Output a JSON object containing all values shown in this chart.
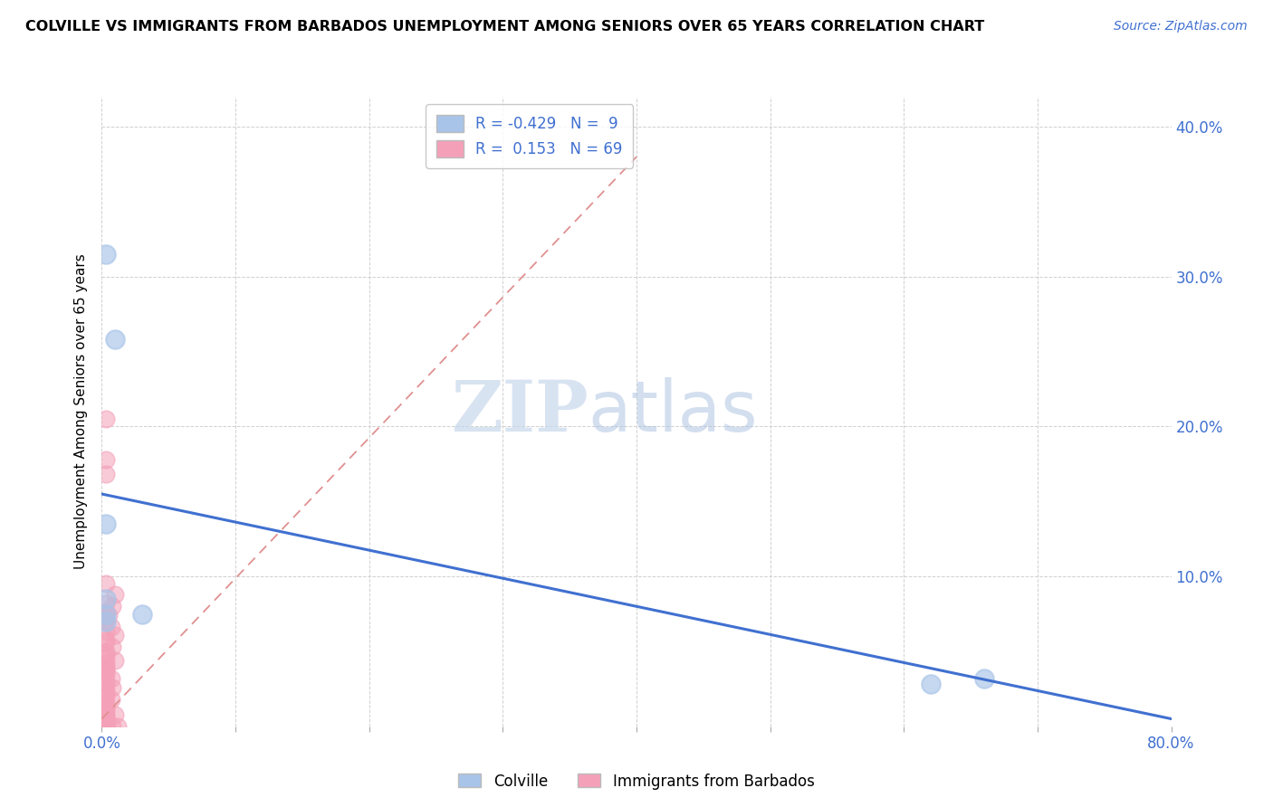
{
  "title": "COLVILLE VS IMMIGRANTS FROM BARBADOS UNEMPLOYMENT AMONG SENIORS OVER 65 YEARS CORRELATION CHART",
  "source": "Source: ZipAtlas.com",
  "ylabel": "Unemployment Among Seniors over 65 years",
  "xlim": [
    0,
    0.8
  ],
  "ylim": [
    0,
    0.42
  ],
  "xtick_positions": [
    0.0,
    0.1,
    0.2,
    0.3,
    0.4,
    0.5,
    0.6,
    0.7,
    0.8
  ],
  "xticklabels": [
    "0.0%",
    "",
    "",
    "",
    "",
    "",
    "",
    "",
    "80.0%"
  ],
  "ytick_positions": [
    0.0,
    0.1,
    0.2,
    0.3,
    0.4
  ],
  "yticklabels_right": [
    "",
    "10.0%",
    "20.0%",
    "30.0%",
    "40.0%"
  ],
  "legend_R1": "-0.429",
  "legend_N1": "9",
  "legend_R2": "0.153",
  "legend_N2": "69",
  "colville_color": "#a8c4e8",
  "barbados_color": "#f4a0b8",
  "line_color": "#4070d0",
  "dashed_line_color": "#e09090",
  "blue_line_x0": 0.0,
  "blue_line_y0": 0.155,
  "blue_line_x1": 0.8,
  "blue_line_y1": 0.005,
  "dash_line_x0": 0.0,
  "dash_line_y0": 0.005,
  "dash_line_x1": 0.4,
  "dash_line_y1": 0.38,
  "colville_points": [
    [
      0.003,
      0.315
    ],
    [
      0.01,
      0.258
    ],
    [
      0.003,
      0.135
    ],
    [
      0.003,
      0.085
    ],
    [
      0.003,
      0.075
    ],
    [
      0.03,
      0.075
    ],
    [
      0.003,
      0.07
    ],
    [
      0.62,
      0.028
    ],
    [
      0.66,
      0.032
    ]
  ],
  "barbados_points": [
    [
      0.003,
      0.205
    ],
    [
      0.003,
      0.178
    ],
    [
      0.003,
      0.168
    ],
    [
      0.003,
      0.095
    ],
    [
      0.01,
      0.088
    ],
    [
      0.003,
      0.082
    ],
    [
      0.008,
      0.08
    ],
    [
      0.003,
      0.076
    ],
    [
      0.005,
      0.074
    ],
    [
      0.003,
      0.07
    ],
    [
      0.007,
      0.066
    ],
    [
      0.003,
      0.063
    ],
    [
      0.01,
      0.061
    ],
    [
      0.003,
      0.058
    ],
    [
      0.003,
      0.056
    ],
    [
      0.008,
      0.053
    ],
    [
      0.003,
      0.05
    ],
    [
      0.003,
      0.048
    ],
    [
      0.003,
      0.046
    ],
    [
      0.01,
      0.044
    ],
    [
      0.003,
      0.042
    ],
    [
      0.003,
      0.04
    ],
    [
      0.003,
      0.038
    ],
    [
      0.003,
      0.036
    ],
    [
      0.003,
      0.034
    ],
    [
      0.007,
      0.032
    ],
    [
      0.003,
      0.03
    ],
    [
      0.003,
      0.028
    ],
    [
      0.008,
      0.026
    ],
    [
      0.003,
      0.024
    ],
    [
      0.003,
      0.022
    ],
    [
      0.003,
      0.02
    ],
    [
      0.007,
      0.018
    ],
    [
      0.003,
      0.016
    ],
    [
      0.003,
      0.014
    ],
    [
      0.003,
      0.012
    ],
    [
      0.003,
      0.01
    ],
    [
      0.01,
      0.008
    ],
    [
      0.003,
      0.007
    ],
    [
      0.003,
      0.006
    ],
    [
      0.003,
      0.005
    ],
    [
      0.003,
      0.004
    ],
    [
      0.003,
      0.003
    ],
    [
      0.003,
      0.002
    ],
    [
      0.003,
      0.001
    ],
    [
      0.003,
      0.0
    ],
    [
      0.003,
      0.0
    ],
    [
      0.008,
      0.0
    ],
    [
      0.012,
      0.0
    ],
    [
      0.003,
      0.0
    ],
    [
      0.003,
      0.0
    ],
    [
      0.003,
      0.0
    ],
    [
      0.003,
      0.0
    ],
    [
      0.003,
      0.0
    ],
    [
      0.003,
      0.0
    ],
    [
      0.003,
      0.0
    ],
    [
      0.003,
      0.0
    ],
    [
      0.003,
      0.0
    ],
    [
      0.003,
      0.0
    ],
    [
      0.003,
      0.0
    ],
    [
      0.003,
      0.0
    ],
    [
      0.003,
      0.0
    ],
    [
      0.003,
      0.0
    ],
    [
      0.003,
      0.0
    ],
    [
      0.003,
      0.0
    ],
    [
      0.003,
      0.0
    ],
    [
      0.003,
      0.0
    ],
    [
      0.003,
      0.0
    ],
    [
      0.003,
      0.0
    ]
  ]
}
